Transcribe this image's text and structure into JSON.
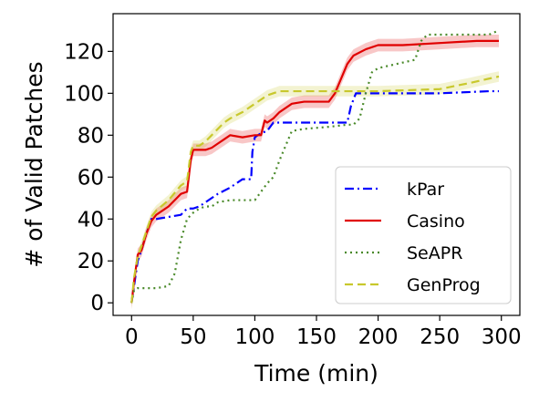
{
  "chart_data": {
    "type": "line",
    "xlabel": "Time (min)",
    "ylabel": "# of Valid Patches",
    "xlim": [
      -15,
      315
    ],
    "ylim": [
      -6,
      138
    ],
    "xticks": [
      0,
      50,
      100,
      150,
      200,
      250,
      300
    ],
    "yticks": [
      0,
      20,
      40,
      60,
      80,
      100,
      120
    ],
    "grid": false,
    "legend_position": "lower-right",
    "series": [
      {
        "name": "kPar",
        "color": "#0000ff",
        "dash": "dashdot",
        "x": [
          0,
          2,
          5,
          8,
          12,
          16,
          20,
          30,
          40,
          45,
          50,
          55,
          60,
          65,
          70,
          80,
          90,
          97,
          98,
          100,
          105,
          110,
          115,
          120,
          130,
          140,
          160,
          175,
          178,
          182,
          190,
          200,
          250,
          290,
          298
        ],
        "y": [
          0,
          8,
          20,
          25,
          33,
          40,
          40,
          41,
          42,
          45,
          45,
          46,
          48,
          50,
          52,
          55,
          59,
          59,
          72,
          79,
          81,
          82,
          86,
          86,
          86,
          86,
          86,
          86,
          94,
          100,
          100,
          100,
          100,
          101,
          101
        ]
      },
      {
        "name": "Casino",
        "color": "#e00000",
        "dash": "solid",
        "band": 3,
        "x": [
          0,
          2,
          5,
          8,
          12,
          16,
          20,
          30,
          40,
          45,
          48,
          50,
          55,
          60,
          65,
          70,
          75,
          80,
          90,
          100,
          105,
          108,
          110,
          115,
          120,
          130,
          140,
          160,
          165,
          170,
          175,
          180,
          190,
          200,
          220,
          250,
          280,
          298
        ],
        "y": [
          0,
          10,
          23,
          25,
          33,
          39,
          42,
          46,
          52,
          53,
          68,
          73,
          73,
          73,
          74,
          76,
          78,
          80,
          79,
          80,
          80,
          87,
          86,
          88,
          91,
          95,
          96,
          96,
          100,
          107,
          114,
          118,
          121,
          123,
          123,
          124,
          125,
          125
        ]
      },
      {
        "name": "SeAPR",
        "color": "#4a8a2a",
        "dash": "dotted",
        "x": [
          0,
          2,
          5,
          10,
          20,
          30,
          35,
          40,
          45,
          50,
          55,
          60,
          65,
          70,
          80,
          100,
          105,
          110,
          115,
          120,
          130,
          140,
          160,
          175,
          180,
          185,
          190,
          195,
          200,
          230,
          235,
          240,
          290,
          298
        ],
        "y": [
          0,
          6,
          7,
          7,
          7,
          8,
          14,
          30,
          40,
          43,
          45,
          46,
          46,
          48,
          49,
          49,
          53,
          57,
          60,
          68,
          82,
          83,
          84,
          85,
          85,
          88,
          100,
          110,
          112,
          116,
          125,
          128,
          128,
          130
        ]
      },
      {
        "name": "GenProg",
        "color": "#c8c82c",
        "dash": "dashed",
        "band": 2.5,
        "x": [
          0,
          2,
          5,
          8,
          12,
          16,
          20,
          30,
          40,
          45,
          48,
          50,
          55,
          60,
          65,
          70,
          75,
          80,
          90,
          100,
          105,
          110,
          115,
          120,
          130,
          200,
          250,
          275,
          290,
          298
        ],
        "y": [
          0,
          12,
          22,
          27,
          34,
          41,
          44,
          49,
          56,
          58,
          72,
          75,
          75,
          77,
          80,
          83,
          86,
          88,
          91,
          95,
          97,
          99,
          100,
          101,
          101,
          101,
          102,
          105,
          107,
          108
        ]
      }
    ]
  }
}
